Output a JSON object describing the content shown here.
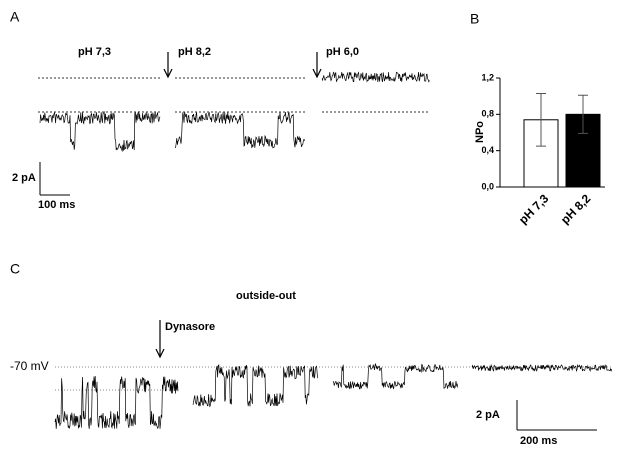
{
  "panels": {
    "a": {
      "label": "A",
      "conditions": [
        "pH  7,3",
        "pH 8,2",
        "pH 6,0"
      ],
      "scale_y": "2 pA",
      "scale_x": "100 ms"
    },
    "c": {
      "label": "C",
      "title": "outside-out",
      "arrow": "Dynasore",
      "potential": "-70 mV",
      "scale_y": "2 pA",
      "scale_x": "200 ms"
    }
  },
  "chart_data": {
    "type": "bar",
    "label": "B",
    "ylabel": "NPo",
    "categories": [
      "pH  7,3",
      "pH 8,2"
    ],
    "values": [
      0.74,
      0.8
    ],
    "errors": [
      0.29,
      0.21
    ],
    "colors": [
      "#ffffff",
      "#000000"
    ],
    "ylim": [
      0,
      1.2
    ],
    "yticks": [
      {
        "value": 0,
        "label": "0,0"
      },
      {
        "value": 0.4,
        "label": "0,4"
      },
      {
        "value": 0.8,
        "label": "0,8"
      },
      {
        "value": 1.2,
        "label": "1,2"
      }
    ]
  }
}
